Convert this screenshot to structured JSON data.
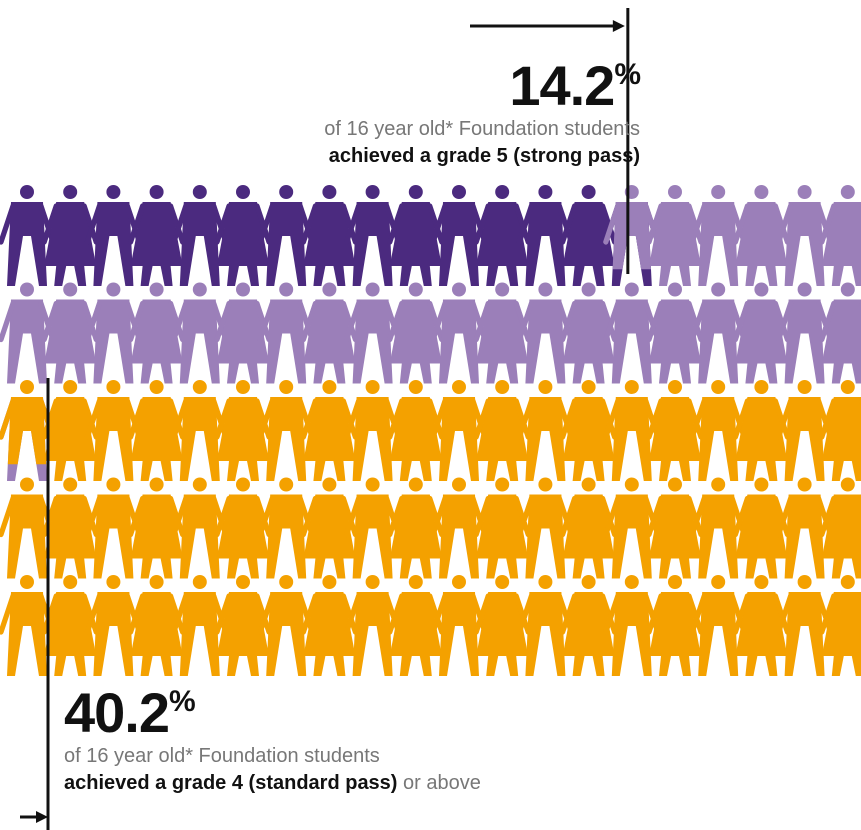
{
  "colors": {
    "grade5": "#4b2a7f",
    "grade4": "#9b7fb9",
    "below": "#f4a100",
    "marker": "#111111"
  },
  "top_stat": {
    "value": "14.2",
    "unit": "%",
    "line1": "of 16 year old* Foundation students",
    "line2": "achieved a grade 5 (strong pass)"
  },
  "bottom_stat": {
    "value": "40.2",
    "unit": "%",
    "line1": "of 16 year old* Foundation students",
    "line2_bold": "achieved a grade 4 (standard pass)",
    "line2_rest": " or above"
  },
  "chart_data": {
    "type": "pictogram",
    "total_icons": 100,
    "icons_per_row": 20,
    "rows": 5,
    "series": [
      {
        "value": 14.2
      },
      {
        "value": 26.0
      },
      {
        "value": 59.8
      }
    ],
    "icon": "person-icon"
  }
}
